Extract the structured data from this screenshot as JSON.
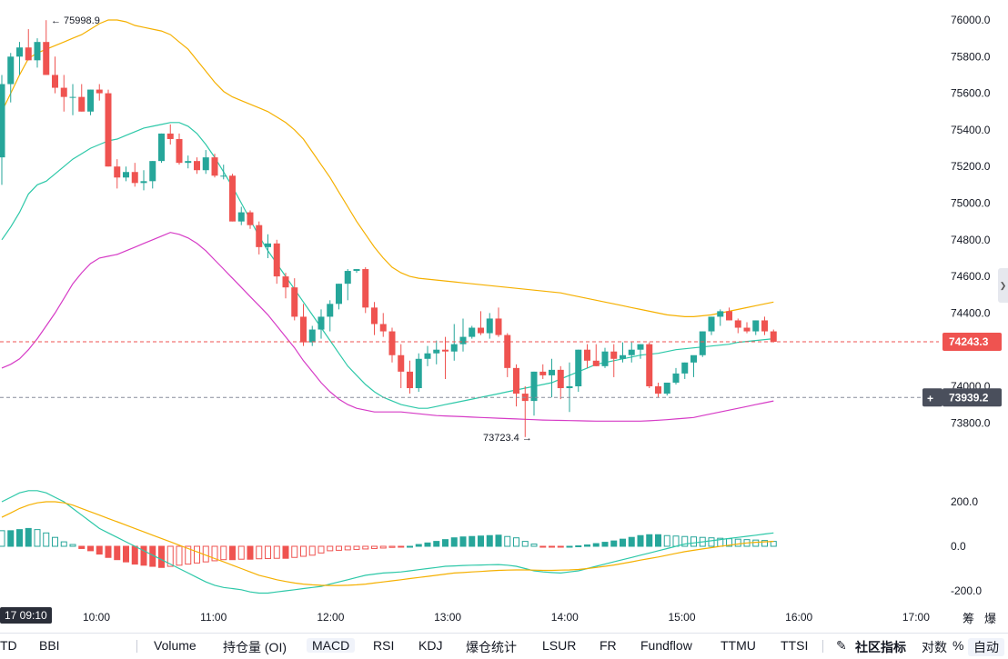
{
  "chart_data": {
    "type": "candlestick",
    "symbol_note": "",
    "price_axis": {
      "min": 73800,
      "max": 76000,
      "ticks": [
        "76000.0",
        "75800.0",
        "75600.0",
        "75400.0",
        "75200.0",
        "75000.0",
        "74800.0",
        "74600.0",
        "74400.0",
        "74000.0",
        "73800.0"
      ]
    },
    "time_axis": {
      "ticks": [
        "10:00",
        "11:00",
        "12:00",
        "13:00",
        "14:00",
        "15:00",
        "16:00",
        "17:00"
      ],
      "cursor_label": "17 09:10"
    },
    "annotations": {
      "high": "75998.9",
      "low": "73723.4"
    },
    "current_price": "74243.3",
    "crosshair_price": "73939.2",
    "macd_axis": {
      "ticks": [
        "200.0",
        "0.0",
        "-200.0"
      ]
    },
    "candles": [
      [
        75250,
        75700,
        75100,
        75650
      ],
      [
        75650,
        75820,
        75550,
        75800
      ],
      [
        75800,
        75880,
        75700,
        75850
      ],
      [
        75850,
        75950,
        75780,
        75780
      ],
      [
        75780,
        75900,
        75740,
        75880
      ],
      [
        75880,
        75999,
        75700,
        75700
      ],
      [
        75700,
        75800,
        75600,
        75630
      ],
      [
        75630,
        75700,
        75500,
        75580
      ],
      [
        75580,
        75650,
        75480,
        75580
      ],
      [
        75580,
        75650,
        75500,
        75500
      ],
      [
        75500,
        75620,
        75480,
        75620
      ],
      [
        75620,
        75650,
        75560,
        75600
      ],
      [
        75600,
        75620,
        75200,
        75200
      ],
      [
        75200,
        75240,
        75080,
        75140
      ],
      [
        75140,
        75200,
        75120,
        75170
      ],
      [
        75170,
        75220,
        75090,
        75110
      ],
      [
        75110,
        75180,
        75070,
        75120
      ],
      [
        75120,
        75230,
        75080,
        75230
      ],
      [
        75230,
        75380,
        75220,
        75380
      ],
      [
        75380,
        75430,
        75320,
        75350
      ],
      [
        75350,
        75380,
        75210,
        75220
      ],
      [
        75220,
        75260,
        75190,
        75230
      ],
      [
        75230,
        75250,
        75160,
        75180
      ],
      [
        75180,
        75290,
        75160,
        75250
      ],
      [
        75250,
        75270,
        75140,
        75150
      ],
      [
        75150,
        75210,
        75130,
        75150
      ],
      [
        75150,
        75160,
        74900,
        74900
      ],
      [
        74900,
        74980,
        74880,
        74950
      ],
      [
        74950,
        74960,
        74860,
        74880
      ],
      [
        74880,
        74900,
        74720,
        74760
      ],
      [
        74760,
        74830,
        74700,
        74780
      ],
      [
        74780,
        74800,
        74560,
        74600
      ],
      [
        74600,
        74620,
        74480,
        74540
      ],
      [
        74540,
        74590,
        74360,
        74380
      ],
      [
        74380,
        74450,
        74220,
        74240
      ],
      [
        74240,
        74330,
        74220,
        74310
      ],
      [
        74310,
        74420,
        74260,
        74380
      ],
      [
        74380,
        74470,
        74300,
        74450
      ],
      [
        74450,
        74560,
        74420,
        74560
      ],
      [
        74560,
        74640,
        74470,
        74630
      ],
      [
        74630,
        74640,
        74620,
        74640
      ],
      [
        74640,
        74650,
        74400,
        74430
      ],
      [
        74430,
        74460,
        74280,
        74340
      ],
      [
        74340,
        74400,
        74270,
        74300
      ],
      [
        74300,
        74320,
        74130,
        74170
      ],
      [
        74170,
        74230,
        73990,
        74080
      ],
      [
        74080,
        74140,
        73960,
        73990
      ],
      [
        73990,
        74180,
        73970,
        74150
      ],
      [
        74150,
        74220,
        74110,
        74180
      ],
      [
        74180,
        74250,
        74120,
        74200
      ],
      [
        74200,
        74270,
        74040,
        74190
      ],
      [
        74190,
        74340,
        74140,
        74230
      ],
      [
        74230,
        74370,
        74190,
        74270
      ],
      [
        74270,
        74330,
        74260,
        74320
      ],
      [
        74320,
        74410,
        74280,
        74290
      ],
      [
        74290,
        74400,
        74260,
        74370
      ],
      [
        74370,
        74430,
        74270,
        74280
      ],
      [
        74280,
        74290,
        74050,
        74100
      ],
      [
        74100,
        74120,
        73890,
        73960
      ],
      [
        73960,
        74000,
        73723,
        73920
      ],
      [
        73920,
        74080,
        73840,
        74080
      ],
      [
        74080,
        74120,
        74040,
        74060
      ],
      [
        74060,
        74150,
        73940,
        74090
      ],
      [
        74090,
        74110,
        73930,
        73990
      ],
      [
        73990,
        74130,
        73860,
        74000
      ],
      [
        74000,
        74200,
        73970,
        74200
      ],
      [
        74200,
        74230,
        74100,
        74140
      ],
      [
        74140,
        74230,
        74110,
        74110
      ],
      [
        74110,
        74210,
        74100,
        74190
      ],
      [
        74190,
        74230,
        74050,
        74150
      ],
      [
        74150,
        74240,
        74130,
        74170
      ],
      [
        74170,
        74240,
        74130,
        74200
      ],
      [
        74200,
        74230,
        74150,
        74230
      ],
      [
        74230,
        74240,
        73990,
        74000
      ],
      [
        74000,
        74020,
        73940,
        73960
      ],
      [
        73960,
        74020,
        73950,
        74020
      ],
      [
        74020,
        74100,
        74010,
        74070
      ],
      [
        74070,
        74130,
        74040,
        74130
      ],
      [
        74130,
        74160,
        74050,
        74170
      ],
      [
        74170,
        74300,
        74160,
        74300
      ],
      [
        74300,
        74380,
        74280,
        74380
      ],
      [
        74380,
        74420,
        74330,
        74410
      ],
      [
        74410,
        74430,
        74360,
        74360
      ],
      [
        74360,
        74370,
        74290,
        74320
      ],
      [
        74320,
        74350,
        74290,
        74300
      ],
      [
        74300,
        74360,
        74280,
        74360
      ],
      [
        74360,
        74380,
        74280,
        74300
      ],
      [
        74300,
        74310,
        74240,
        74243
      ]
    ],
    "bollinger": {
      "middle": [
        74800,
        74870,
        74950,
        75050,
        75100,
        75120,
        75160,
        75200,
        75240,
        75270,
        75300,
        75320,
        75340,
        75350,
        75370,
        75390,
        75410,
        75420,
        75430,
        75440,
        75440,
        75420,
        75380,
        75320,
        75250,
        75170,
        75090,
        75000,
        74910,
        74820,
        74740,
        74670,
        74600,
        74530,
        74460,
        74390,
        74320,
        74250,
        74180,
        74110,
        74060,
        74010,
        73970,
        73940,
        73920,
        73900,
        73890,
        73880,
        73880,
        73890,
        73900,
        73910,
        73920,
        73930,
        73940,
        73950,
        73960,
        73970,
        73980,
        73990,
        74000,
        74010,
        74020,
        74040,
        74060,
        74080,
        74100,
        74120,
        74130,
        74140,
        74150,
        74160,
        74170,
        74175,
        74180,
        74190,
        74200,
        74205,
        74210,
        74215,
        74220,
        74225,
        74230,
        74240,
        74245,
        74250,
        74255,
        74260
      ],
      "upper": [
        75500,
        75600,
        75700,
        75790,
        75820,
        75840,
        75860,
        75880,
        75900,
        75920,
        75950,
        75980,
        76000,
        76000,
        75990,
        75970,
        75960,
        75950,
        75940,
        75920,
        75880,
        75840,
        75780,
        75720,
        75660,
        75610,
        75580,
        75560,
        75540,
        75520,
        75500,
        75470,
        75440,
        75400,
        75350,
        75280,
        75210,
        75140,
        75060,
        74980,
        74900,
        74830,
        74760,
        74700,
        74650,
        74620,
        74600,
        74590,
        74585,
        74580,
        74575,
        74570,
        74565,
        74560,
        74555,
        74550,
        74545,
        74540,
        74535,
        74530,
        74525,
        74520,
        74515,
        74510,
        74500,
        74490,
        74480,
        74470,
        74460,
        74450,
        74440,
        74430,
        74420,
        74410,
        74400,
        74390,
        74385,
        74380,
        74380,
        74385,
        74390,
        74400,
        74410,
        74420,
        74430,
        74440,
        74450,
        74460
      ],
      "lower": [
        74100,
        74120,
        74150,
        74200,
        74260,
        74330,
        74400,
        74480,
        74560,
        74620,
        74670,
        74700,
        74710,
        74720,
        74740,
        74760,
        74780,
        74800,
        74820,
        74840,
        74830,
        74810,
        74780,
        74740,
        74690,
        74640,
        74590,
        74540,
        74490,
        74440,
        74390,
        74330,
        74270,
        74210,
        74140,
        74080,
        74020,
        73970,
        73930,
        73900,
        73880,
        73870,
        73860,
        73860,
        73860,
        73860,
        73855,
        73850,
        73845,
        73840,
        73838,
        73836,
        73834,
        73832,
        73830,
        73828,
        73826,
        73824,
        73822,
        73820,
        73818,
        73816,
        73815,
        73814,
        73813,
        73812,
        73811,
        73810,
        73810,
        73810,
        73810,
        73810,
        73810,
        73812,
        73815,
        73818,
        73822,
        73826,
        73830,
        73840,
        73850,
        73860,
        73870,
        73880,
        73890,
        73900,
        73910,
        73920
      ]
    },
    "macd": {
      "hist": [
        70,
        70,
        75,
        80,
        75,
        60,
        40,
        20,
        8,
        -10,
        -20,
        -35,
        -50,
        -60,
        -70,
        -80,
        -85,
        -90,
        -95,
        -90,
        -85,
        -80,
        -75,
        -70,
        -65,
        -60,
        -60,
        -58,
        -58,
        -56,
        -55,
        -54,
        -54,
        -50,
        -45,
        -40,
        -30,
        -20,
        -18,
        -16,
        -14,
        -12,
        -10,
        -8,
        -5,
        -2,
        0,
        8,
        15,
        22,
        30,
        38,
        42,
        44,
        46,
        48,
        50,
        44,
        38,
        22,
        10,
        -4,
        -2,
        -2,
        0,
        2,
        6,
        12,
        18,
        24,
        32,
        40,
        48,
        52,
        52,
        48,
        46,
        44,
        42,
        40,
        38,
        36,
        34,
        32,
        30,
        28,
        26,
        22
      ],
      "dif": [
        200,
        220,
        240,
        250,
        250,
        240,
        220,
        200,
        170,
        140,
        110,
        80,
        60,
        40,
        20,
        0,
        -20,
        -40,
        -60,
        -80,
        -100,
        -120,
        -140,
        -160,
        -175,
        -185,
        -190,
        -195,
        -205,
        -210,
        -210,
        -205,
        -200,
        -195,
        -190,
        -185,
        -180,
        -170,
        -160,
        -150,
        -140,
        -130,
        -125,
        -120,
        -118,
        -115,
        -110,
        -105,
        -100,
        -95,
        -90,
        -88,
        -86,
        -85,
        -84,
        -83,
        -82,
        -85,
        -90,
        -100,
        -110,
        -115,
        -118,
        -120,
        -115,
        -110,
        -100,
        -90,
        -80,
        -70,
        -60,
        -50,
        -40,
        -30,
        -20,
        -10,
        0,
        10,
        15,
        20,
        25,
        30,
        35,
        40,
        45,
        50,
        55,
        60
      ],
      "dea": [
        130,
        150,
        170,
        185,
        195,
        200,
        200,
        195,
        185,
        170,
        155,
        140,
        125,
        110,
        95,
        80,
        65,
        50,
        35,
        20,
        5,
        -10,
        -25,
        -40,
        -55,
        -70,
        -85,
        -100,
        -115,
        -130,
        -140,
        -150,
        -158,
        -165,
        -170,
        -173,
        -175,
        -176,
        -176,
        -175,
        -173,
        -170,
        -165,
        -160,
        -155,
        -150,
        -145,
        -140,
        -135,
        -130,
        -125,
        -120,
        -118,
        -115,
        -113,
        -110,
        -108,
        -107,
        -106,
        -106,
        -107,
        -108,
        -108,
        -107,
        -106,
        -104,
        -100,
        -95,
        -90,
        -84,
        -77,
        -70,
        -62,
        -55,
        -48,
        -40,
        -32,
        -24,
        -18,
        -12,
        -6,
        0,
        5,
        10,
        15,
        18,
        20,
        22
      ]
    }
  },
  "colors": {
    "up": "#26a69a",
    "down": "#ef5350",
    "upper_band": "#f5b000",
    "middle_band": "#2dc8a8",
    "lower_band": "#d63bc6",
    "dif": "#2dc8a8",
    "dea": "#f5b000"
  },
  "toolbar": {
    "items": [
      "TD",
      "BBI",
      "Volume",
      "持仓量 (OI)",
      "MACD",
      "RSI",
      "KDJ",
      "爆仓统计",
      "LSUR",
      "FR",
      "Fundflow",
      "TTMU",
      "TTSI"
    ],
    "community": "社区指标",
    "log": "对数",
    "pct": "%",
    "auto": "自动"
  },
  "axis_extras": {
    "ruler": "筹",
    "burst": "爆"
  }
}
